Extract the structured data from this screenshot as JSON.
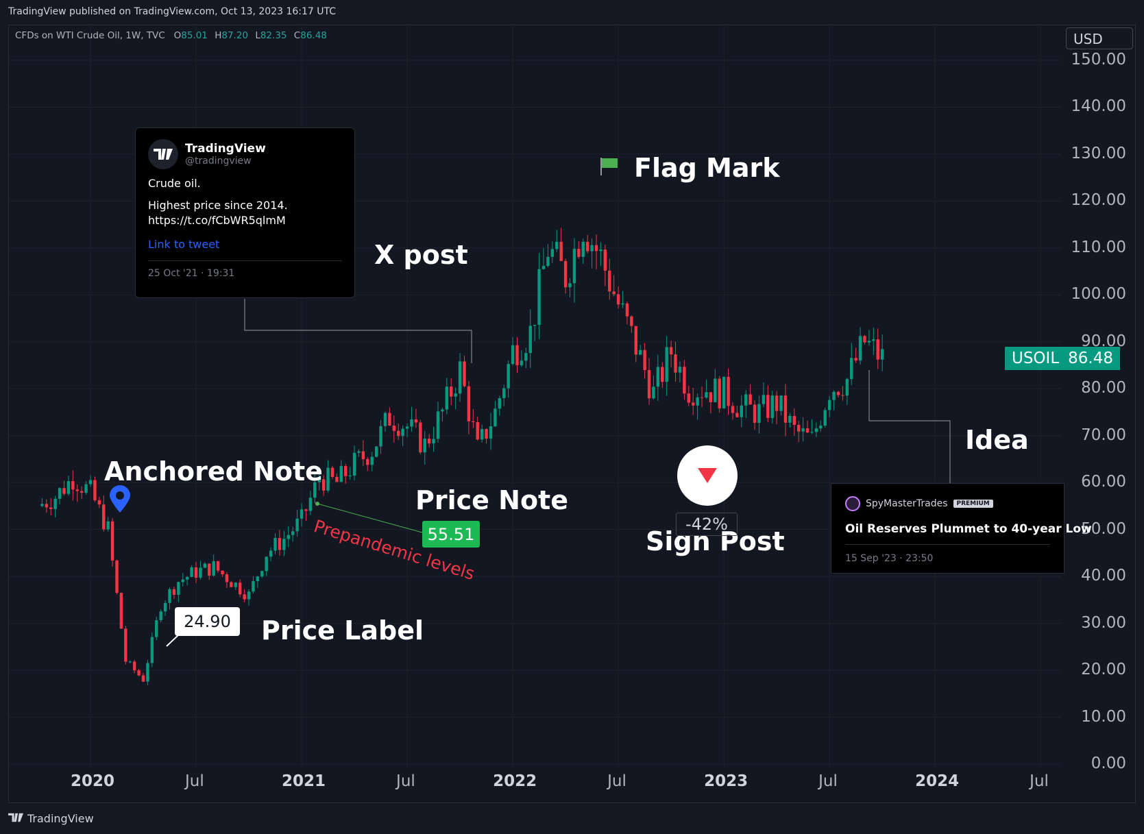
{
  "header": {
    "published": "TradingView published on TradingView.com, Oct 13, 2023 16:17 UTC"
  },
  "legend": {
    "symbol": "CFDs on WTI Crude Oil, 1W, TVC",
    "o_label": "O",
    "o": "85.01",
    "h_label": "H",
    "h": "87.20",
    "l_label": "L",
    "l": "82.35",
    "c_label": "C",
    "c": "86.48"
  },
  "currency": "USD",
  "price_tag": {
    "symbol": "USOIL",
    "price": "86.48"
  },
  "y_axis": [
    "150.00",
    "140.00",
    "130.00",
    "120.00",
    "110.00",
    "100.00",
    "90.00",
    "80.00",
    "70.00",
    "60.00",
    "50.00",
    "40.00",
    "30.00",
    "20.00",
    "10.00",
    "0.00"
  ],
  "x_axis": [
    {
      "label": "2020",
      "bold": true
    },
    {
      "label": "Jul",
      "bold": false
    },
    {
      "label": "2021",
      "bold": true
    },
    {
      "label": "Jul",
      "bold": false
    },
    {
      "label": "2022",
      "bold": true
    },
    {
      "label": "Jul",
      "bold": false
    },
    {
      "label": "2023",
      "bold": true
    },
    {
      "label": "Jul",
      "bold": false
    },
    {
      "label": "2024",
      "bold": true
    },
    {
      "label": "Jul",
      "bold": false
    }
  ],
  "annotations": {
    "anchored_note": "Anchored Note",
    "x_post": "X post",
    "flag_mark": "Flag Mark",
    "price_note": "Price Note",
    "price_note_value": "55.51",
    "prepandemic": "Prepandemic levels",
    "price_label": "Price Label",
    "price_label_value": "24.90",
    "sign_post": "Sign Post",
    "sign_post_value": "-42%",
    "idea": "Idea"
  },
  "tweet": {
    "name": "TradingView",
    "handle": "@tradingview",
    "line1": "Crude oil.",
    "line2": "Highest price since 2014. https://t.co/fCbWR5qlmM",
    "link": "Link to tweet",
    "date": "25 Oct '21 · 19:31"
  },
  "idea_card": {
    "author": "SpyMasterTrades",
    "badge": "PREMIUM",
    "title": "Oil Reserves Plummet to 40-year Low",
    "date": "15 Sep '23 · 23:50"
  },
  "footer": {
    "brand": "TradingView"
  },
  "colors": {
    "up": "#089981",
    "down": "#f23645",
    "background": "#131722"
  },
  "chart_data": {
    "type": "candlestick",
    "title": "",
    "xlabel": "",
    "ylabel": "",
    "ylim": [
      0,
      150
    ],
    "x_range": [
      "2019-10",
      "2024-08"
    ],
    "series": [
      {
        "name": "USOIL",
        "note": "approximate weekly close values read from chart",
        "closes": [
          {
            "date": "2019-10",
            "value": 55
          },
          {
            "date": "2019-11",
            "value": 57
          },
          {
            "date": "2019-12",
            "value": 61
          },
          {
            "date": "2020-01",
            "value": 58
          },
          {
            "date": "2020-02",
            "value": 50
          },
          {
            "date": "2020-03",
            "value": 22
          },
          {
            "date": "2020-04",
            "value": 18
          },
          {
            "date": "2020-05",
            "value": 34
          },
          {
            "date": "2020-06",
            "value": 39
          },
          {
            "date": "2020-07",
            "value": 41
          },
          {
            "date": "2020-08",
            "value": 42
          },
          {
            "date": "2020-09",
            "value": 39
          },
          {
            "date": "2020-10",
            "value": 36
          },
          {
            "date": "2020-11",
            "value": 45
          },
          {
            "date": "2020-12",
            "value": 48
          },
          {
            "date": "2021-01",
            "value": 52
          },
          {
            "date": "2021-02",
            "value": 61
          },
          {
            "date": "2021-03",
            "value": 60
          },
          {
            "date": "2021-04",
            "value": 64
          },
          {
            "date": "2021-05",
            "value": 67
          },
          {
            "date": "2021-06",
            "value": 74
          },
          {
            "date": "2021-07",
            "value": 72
          },
          {
            "date": "2021-08",
            "value": 68
          },
          {
            "date": "2021-09",
            "value": 75
          },
          {
            "date": "2021-10",
            "value": 84
          },
          {
            "date": "2021-11",
            "value": 67
          },
          {
            "date": "2021-12",
            "value": 75
          },
          {
            "date": "2022-01",
            "value": 88
          },
          {
            "date": "2022-02",
            "value": 92
          },
          {
            "date": "2022-03",
            "value": 110
          },
          {
            "date": "2022-04",
            "value": 104
          },
          {
            "date": "2022-05",
            "value": 115
          },
          {
            "date": "2022-06",
            "value": 108
          },
          {
            "date": "2022-07",
            "value": 98
          },
          {
            "date": "2022-08",
            "value": 89
          },
          {
            "date": "2022-09",
            "value": 79
          },
          {
            "date": "2022-10",
            "value": 88
          },
          {
            "date": "2022-11",
            "value": 80
          },
          {
            "date": "2022-12",
            "value": 80
          },
          {
            "date": "2023-01",
            "value": 79
          },
          {
            "date": "2023-02",
            "value": 76
          },
          {
            "date": "2023-03",
            "value": 75
          },
          {
            "date": "2023-04",
            "value": 77
          },
          {
            "date": "2023-05",
            "value": 71
          },
          {
            "date": "2023-06",
            "value": 69
          },
          {
            "date": "2023-07",
            "value": 80
          },
          {
            "date": "2023-08",
            "value": 82
          },
          {
            "date": "2023-09",
            "value": 90
          },
          {
            "date": "2023-10",
            "value": 86.48
          }
        ]
      }
    ]
  }
}
